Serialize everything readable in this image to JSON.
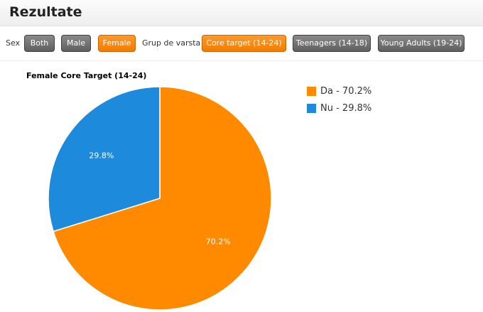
{
  "header": {
    "title": "Rezultate"
  },
  "filters": {
    "sex_label": "Sex",
    "sex_buttons": [
      {
        "label": "Both",
        "state": "inactive"
      },
      {
        "label": "Male",
        "state": "inactive"
      },
      {
        "label": "Female",
        "state": "active"
      }
    ],
    "age_label": "Grup de varsta",
    "age_buttons": [
      {
        "label": "Core target (14-24)",
        "state": "active"
      },
      {
        "label": "Teenagers (14-18)",
        "state": "inactive"
      },
      {
        "label": "Young Adults (19-24)",
        "state": "inactive"
      }
    ]
  },
  "colors": {
    "active": "#f68a0f",
    "inactive": "#6f6f6f"
  },
  "chart_data": {
    "type": "pie",
    "title": "Female Core Target (14-24)",
    "slices": [
      {
        "label": "Da",
        "value": 70.2,
        "color": "#ff8a00",
        "data_label": "70.2%",
        "legend": "Da - 70.2%"
      },
      {
        "label": "Nu",
        "value": 29.8,
        "color": "#1e8adb",
        "data_label": "29.8%",
        "legend": "Nu - 29.8%"
      }
    ],
    "start_angle_deg": 0,
    "direction": "clockwise",
    "legend_position": "top-right"
  }
}
